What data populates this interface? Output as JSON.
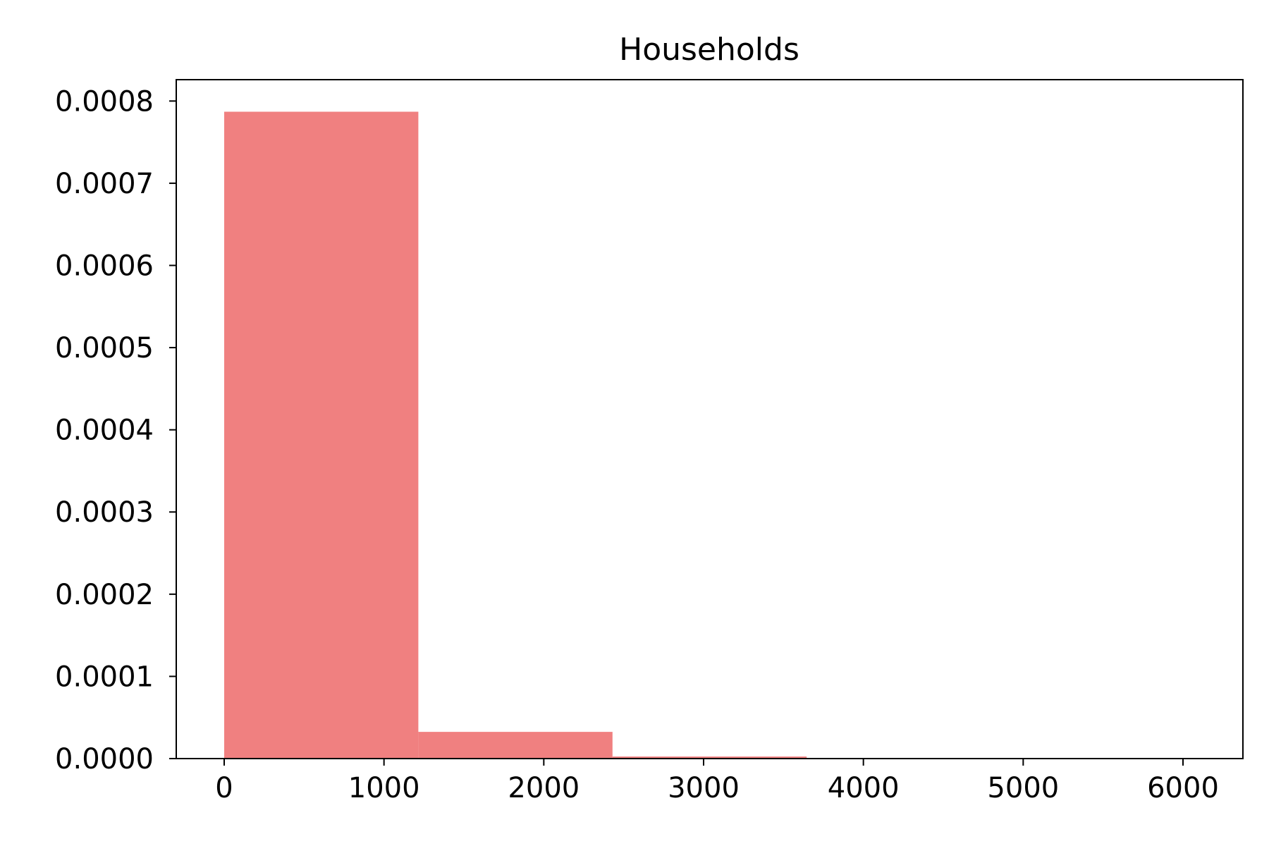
{
  "chart_data": {
    "type": "bar",
    "title": "Households",
    "xlabel": "",
    "ylabel": "",
    "bar_color": "#f08080",
    "bins": [
      {
        "x0": 0,
        "x1": 1215,
        "value": 0.000787
      },
      {
        "x0": 1215,
        "x1": 2430,
        "value": 3.25e-05
      },
      {
        "x0": 2430,
        "x1": 3645,
        "value": 2.5e-06
      },
      {
        "x0": 3645,
        "x1": 4860,
        "value": 0.0
      },
      {
        "x0": 4860,
        "x1": 6075,
        "value": 0.0
      }
    ],
    "xlim": [
      -300,
      6375
    ],
    "ylim": [
      0,
      0.000826
    ],
    "xticks": [
      0,
      1000,
      2000,
      3000,
      4000,
      5000,
      6000
    ],
    "xtick_labels": [
      "0",
      "1000",
      "2000",
      "3000",
      "4000",
      "5000",
      "6000"
    ],
    "yticks": [
      0,
      0.0001,
      0.0002,
      0.0003,
      0.0004,
      0.0005,
      0.0006,
      0.0007,
      0.0008
    ],
    "ytick_labels": [
      "0.0000",
      "0.0001",
      "0.0002",
      "0.0003",
      "0.0004",
      "0.0005",
      "0.0006",
      "0.0007",
      "0.0008"
    ],
    "grid": false
  }
}
